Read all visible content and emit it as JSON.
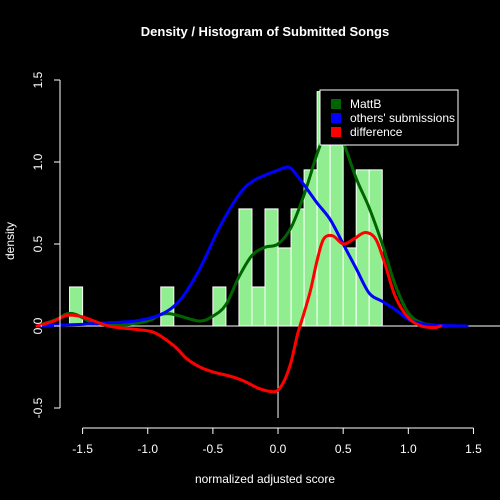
{
  "chart_data": {
    "type": "histogram+line",
    "title": "Density / Histogram of Submitted Songs",
    "xlabel": "normalized adjusted score",
    "ylabel": "density",
    "xlim": [
      -1.85,
      1.65
    ],
    "ylim": [
      -0.5,
      1.5
    ],
    "x_ticks": [
      -1.5,
      -1.0,
      -0.5,
      0.0,
      0.5,
      1.0,
      1.5
    ],
    "x_tick_labels": [
      "-1.5",
      "-1.0",
      "-0.5",
      "0.0",
      "0.5",
      "1.0",
      "1.5"
    ],
    "y_ticks": [
      -0.5,
      0.0,
      0.5,
      1.0,
      1.5
    ],
    "y_tick_labels": [
      "-0.5",
      "0.0",
      "0.5",
      "1.0",
      "1.5"
    ],
    "histogram": {
      "color": "#90EE90",
      "bins": [
        {
          "x0": -1.6,
          "x1": -1.5,
          "density": 0.238
        },
        {
          "x0": -1.5,
          "x1": -1.4,
          "density": 0.0
        },
        {
          "x0": -1.4,
          "x1": -1.3,
          "density": 0.0
        },
        {
          "x0": -1.3,
          "x1": -1.2,
          "density": 0.0
        },
        {
          "x0": -1.2,
          "x1": -1.1,
          "density": 0.0
        },
        {
          "x0": -1.1,
          "x1": -1.0,
          "density": 0.0
        },
        {
          "x0": -1.0,
          "x1": -0.9,
          "density": 0.0
        },
        {
          "x0": -0.9,
          "x1": -0.8,
          "density": 0.238
        },
        {
          "x0": -0.8,
          "x1": -0.7,
          "density": 0.0
        },
        {
          "x0": -0.7,
          "x1": -0.6,
          "density": 0.0
        },
        {
          "x0": -0.6,
          "x1": -0.5,
          "density": 0.0
        },
        {
          "x0": -0.5,
          "x1": -0.4,
          "density": 0.238
        },
        {
          "x0": -0.4,
          "x1": -0.3,
          "density": 0.0
        },
        {
          "x0": -0.3,
          "x1": -0.2,
          "density": 0.714
        },
        {
          "x0": -0.2,
          "x1": -0.1,
          "density": 0.238
        },
        {
          "x0": -0.1,
          "x1": 0.0,
          "density": 0.714
        },
        {
          "x0": 0.0,
          "x1": 0.1,
          "density": 0.476
        },
        {
          "x0": 0.1,
          "x1": 0.2,
          "density": 0.714
        },
        {
          "x0": 0.2,
          "x1": 0.3,
          "density": 0.952
        },
        {
          "x0": 0.3,
          "x1": 0.4,
          "density": 1.429
        },
        {
          "x0": 0.4,
          "x1": 0.5,
          "density": 1.429
        },
        {
          "x0": 0.5,
          "x1": 0.6,
          "density": 0.476
        },
        {
          "x0": 0.6,
          "x1": 0.7,
          "density": 0.952
        },
        {
          "x0": 0.7,
          "x1": 0.8,
          "density": 0.952
        },
        {
          "x0": 0.8,
          "x1": 0.9,
          "density": 0.0
        },
        {
          "x0": 0.9,
          "x1": 1.0,
          "density": 0.0
        }
      ]
    },
    "series": [
      {
        "name": "MattB",
        "color": "#006400",
        "points": [
          [
            -1.85,
            0.0
          ],
          [
            -1.7,
            0.04
          ],
          [
            -1.62,
            0.075
          ],
          [
            -1.55,
            0.07
          ],
          [
            -1.45,
            0.03
          ],
          [
            -1.35,
            0.01
          ],
          [
            -1.2,
            0.005
          ],
          [
            -1.0,
            0.03
          ],
          [
            -0.9,
            0.07
          ],
          [
            -0.83,
            0.075
          ],
          [
            -0.75,
            0.06
          ],
          [
            -0.6,
            0.03
          ],
          [
            -0.5,
            0.06
          ],
          [
            -0.4,
            0.13
          ],
          [
            -0.3,
            0.3
          ],
          [
            -0.2,
            0.43
          ],
          [
            -0.1,
            0.48
          ],
          [
            0.0,
            0.5
          ],
          [
            0.1,
            0.6
          ],
          [
            0.2,
            0.8
          ],
          [
            0.3,
            1.05
          ],
          [
            0.37,
            1.19
          ],
          [
            0.42,
            1.21
          ],
          [
            0.5,
            1.12
          ],
          [
            0.6,
            0.9
          ],
          [
            0.7,
            0.72
          ],
          [
            0.8,
            0.5
          ],
          [
            0.9,
            0.25
          ],
          [
            1.0,
            0.08
          ],
          [
            1.1,
            0.02
          ],
          [
            1.2,
            0.005
          ],
          [
            1.3,
            0.0
          ]
        ]
      },
      {
        "name": "others' submissions",
        "color": "#0000FF",
        "points": [
          [
            -1.85,
            0.0
          ],
          [
            -1.7,
            0.005
          ],
          [
            -1.5,
            0.01
          ],
          [
            -1.3,
            0.02
          ],
          [
            -1.1,
            0.03
          ],
          [
            -0.9,
            0.07
          ],
          [
            -0.75,
            0.16
          ],
          [
            -0.6,
            0.35
          ],
          [
            -0.45,
            0.6
          ],
          [
            -0.3,
            0.8
          ],
          [
            -0.2,
            0.88
          ],
          [
            -0.1,
            0.92
          ],
          [
            0.0,
            0.95
          ],
          [
            0.05,
            0.965
          ],
          [
            0.1,
            0.96
          ],
          [
            0.2,
            0.86
          ],
          [
            0.3,
            0.75
          ],
          [
            0.4,
            0.65
          ],
          [
            0.5,
            0.5
          ],
          [
            0.6,
            0.35
          ],
          [
            0.7,
            0.2
          ],
          [
            0.8,
            0.15
          ],
          [
            0.9,
            0.1
          ],
          [
            1.0,
            0.04
          ],
          [
            1.1,
            0.015
          ],
          [
            1.2,
            0.005
          ],
          [
            1.3,
            0.002
          ],
          [
            1.45,
            0.0
          ]
        ]
      },
      {
        "name": "difference",
        "color": "#FF0000",
        "points": [
          [
            -1.85,
            0.0
          ],
          [
            -1.72,
            0.03
          ],
          [
            -1.62,
            0.065
          ],
          [
            -1.5,
            0.055
          ],
          [
            -1.3,
            0.0
          ],
          [
            -1.1,
            -0.02
          ],
          [
            -0.95,
            -0.04
          ],
          [
            -0.8,
            -0.12
          ],
          [
            -0.7,
            -0.2
          ],
          [
            -0.6,
            -0.25
          ],
          [
            -0.5,
            -0.28
          ],
          [
            -0.35,
            -0.31
          ],
          [
            -0.25,
            -0.34
          ],
          [
            -0.15,
            -0.38
          ],
          [
            -0.05,
            -0.4
          ],
          [
            0.0,
            -0.39
          ],
          [
            0.05,
            -0.33
          ],
          [
            0.1,
            -0.22
          ],
          [
            0.15,
            -0.05
          ],
          [
            0.2,
            0.08
          ],
          [
            0.25,
            0.22
          ],
          [
            0.3,
            0.4
          ],
          [
            0.35,
            0.53
          ],
          [
            0.42,
            0.55
          ],
          [
            0.5,
            0.5
          ],
          [
            0.58,
            0.53
          ],
          [
            0.67,
            0.57
          ],
          [
            0.75,
            0.53
          ],
          [
            0.82,
            0.38
          ],
          [
            0.9,
            0.18
          ],
          [
            1.0,
            0.05
          ],
          [
            1.1,
            0.0
          ],
          [
            1.2,
            -0.01
          ],
          [
            1.25,
            0.0
          ]
        ]
      }
    ],
    "legend": {
      "position": "top-right",
      "entries": [
        {
          "label": "MattB",
          "color": "#006400"
        },
        {
          "label": "others' submissions",
          "color": "#0000FF"
        },
        {
          "label": "difference",
          "color": "#FF0000"
        }
      ]
    }
  }
}
